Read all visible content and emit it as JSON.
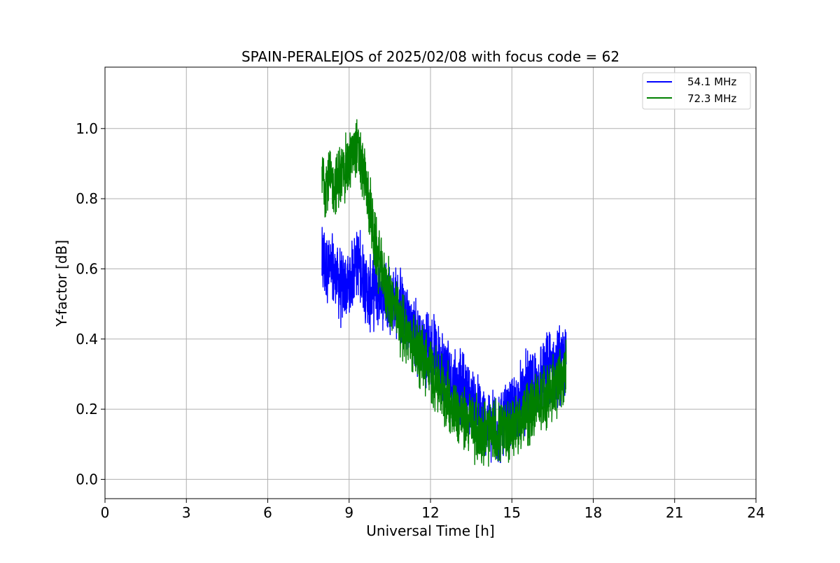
{
  "chart_data": {
    "type": "line",
    "title": "SPAIN-PERALEJOS of 2025/02/08 with focus code = 62",
    "xlabel": "Universal Time [h]",
    "ylabel": "Y-factor [dB]",
    "xlim": [
      0,
      24
    ],
    "ylim": [
      -0.055,
      1.175
    ],
    "xticks": [
      0,
      3,
      6,
      9,
      12,
      15,
      18,
      21,
      24
    ],
    "xtick_labels": [
      "0",
      "3",
      "6",
      "9",
      "12",
      "15",
      "18",
      "21",
      "24"
    ],
    "yticks": [
      0.0,
      0.2,
      0.4,
      0.6,
      0.8,
      1.0
    ],
    "ytick_labels": [
      "0.0",
      "0.2",
      "0.4",
      "0.6",
      "0.8",
      "1.0"
    ],
    "grid": true,
    "legend": {
      "placement": "top-right"
    },
    "series": [
      {
        "name": "54.1 MHz",
        "color": "#0000ff",
        "x": [
          8.0,
          8.25,
          8.5,
          8.75,
          9.0,
          9.25,
          9.5,
          9.75,
          10.0,
          10.25,
          10.5,
          10.75,
          11.0,
          11.25,
          11.5,
          11.75,
          12.0,
          12.25,
          12.5,
          12.75,
          13.0,
          13.25,
          13.5,
          13.75,
          14.0,
          14.25,
          14.5,
          14.75,
          15.0,
          15.25,
          15.5,
          15.75,
          16.0,
          16.25,
          16.5,
          16.75,
          17.0
        ],
        "y": [
          0.62,
          0.6,
          0.58,
          0.54,
          0.55,
          0.63,
          0.58,
          0.52,
          0.55,
          0.54,
          0.52,
          0.5,
          0.48,
          0.44,
          0.4,
          0.38,
          0.37,
          0.35,
          0.32,
          0.29,
          0.27,
          0.25,
          0.22,
          0.19,
          0.16,
          0.15,
          0.15,
          0.16,
          0.18,
          0.22,
          0.25,
          0.27,
          0.28,
          0.3,
          0.32,
          0.33,
          0.33
        ],
        "noise": 0.09
      },
      {
        "name": "72.3 MHz",
        "color": "#008000",
        "x": [
          8.0,
          8.25,
          8.5,
          8.75,
          9.0,
          9.25,
          9.5,
          9.75,
          10.0,
          10.25,
          10.5,
          10.75,
          11.0,
          11.25,
          11.5,
          11.75,
          12.0,
          12.25,
          12.5,
          12.75,
          13.0,
          13.25,
          13.5,
          13.75,
          14.0,
          14.25,
          14.5,
          14.75,
          15.0,
          15.25,
          15.5,
          15.75,
          16.0,
          16.25,
          16.5,
          16.75,
          17.0
        ],
        "y": [
          0.86,
          0.85,
          0.84,
          0.87,
          0.9,
          0.95,
          0.88,
          0.78,
          0.65,
          0.58,
          0.52,
          0.47,
          0.43,
          0.4,
          0.37,
          0.34,
          0.31,
          0.28,
          0.25,
          0.22,
          0.19,
          0.17,
          0.16,
          0.14,
          0.13,
          0.13,
          0.13,
          0.14,
          0.15,
          0.16,
          0.18,
          0.2,
          0.22,
          0.24,
          0.26,
          0.28,
          0.3
        ],
        "noise": 0.08
      }
    ]
  }
}
